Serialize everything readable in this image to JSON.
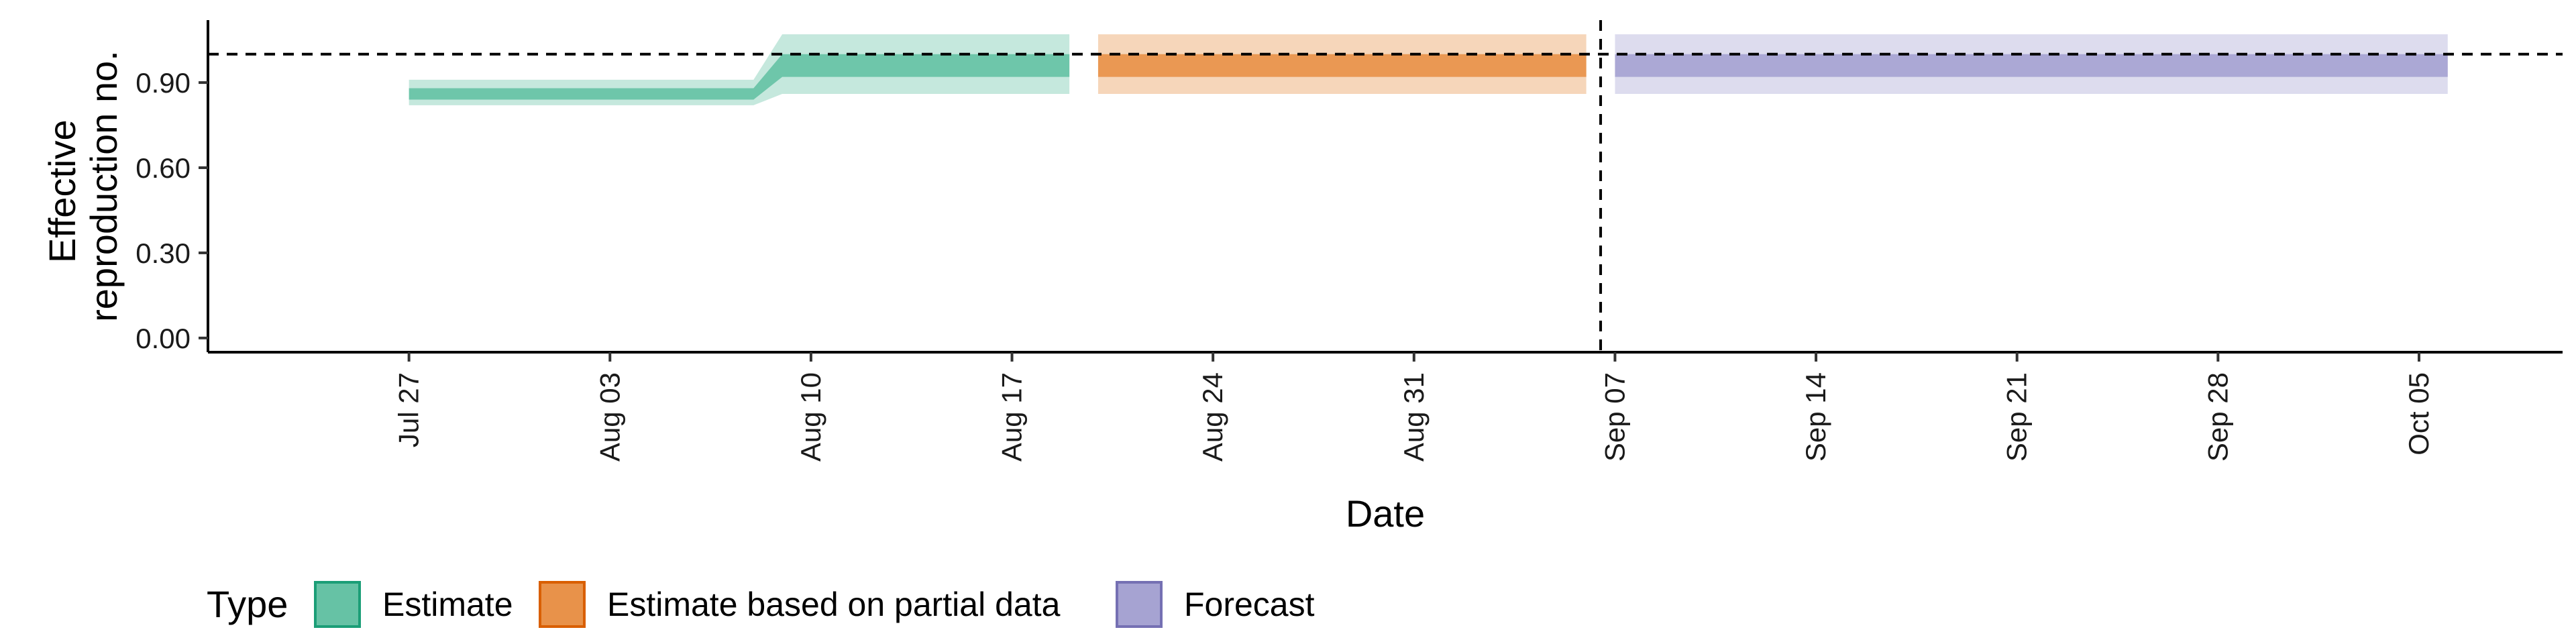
{
  "chart_data": {
    "type": "area",
    "xlabel": "Date",
    "ylabel_lines": [
      "Effective",
      "reproduction no."
    ],
    "x_ticks": [
      {
        "date": "2021-07-27",
        "label": "Jul 27"
      },
      {
        "date": "2021-08-03",
        "label": "Aug 03"
      },
      {
        "date": "2021-08-10",
        "label": "Aug 10"
      },
      {
        "date": "2021-08-17",
        "label": "Aug 17"
      },
      {
        "date": "2021-08-24",
        "label": "Aug 24"
      },
      {
        "date": "2021-08-31",
        "label": "Aug 31"
      },
      {
        "date": "2021-09-07",
        "label": "Sep 07"
      },
      {
        "date": "2021-09-14",
        "label": "Sep 14"
      },
      {
        "date": "2021-09-21",
        "label": "Sep 21"
      },
      {
        "date": "2021-09-28",
        "label": "Sep 28"
      },
      {
        "date": "2021-10-05",
        "label": "Oct 05"
      }
    ],
    "xlim": [
      "2021-07-20",
      "2021-10-10"
    ],
    "y_ticks": [
      {
        "value": 0.0,
        "label": "0.00"
      },
      {
        "value": 0.3,
        "label": "0.30"
      },
      {
        "value": 0.6,
        "label": "0.60"
      },
      {
        "value": 0.9,
        "label": "0.90"
      }
    ],
    "ylim": [
      -0.05,
      1.12
    ],
    "reference_hline": 1.0,
    "reference_vline": "2021-09-06",
    "series": [
      {
        "name": "Estimate",
        "color": "#1b9e77",
        "fill": "#66c2a5",
        "x": [
          "2021-07-27",
          "2021-08-08",
          "2021-08-09",
          "2021-08-19"
        ],
        "lower_90": [
          0.82,
          0.82,
          0.86,
          0.86
        ],
        "upper_90": [
          0.91,
          0.91,
          1.07,
          1.07
        ],
        "lower_50": [
          0.84,
          0.84,
          0.92,
          0.92
        ],
        "upper_50": [
          0.88,
          0.88,
          1.0,
          1.0
        ]
      },
      {
        "name": "Estimate based on partial data",
        "color": "#d95f02",
        "fill": "#e8924a",
        "x": [
          "2021-08-20",
          "2021-09-06"
        ],
        "lower_90": [
          0.86,
          0.86
        ],
        "upper_90": [
          1.07,
          1.07
        ],
        "lower_50": [
          0.92,
          0.92
        ],
        "upper_50": [
          1.0,
          1.0
        ]
      },
      {
        "name": "Forecast",
        "color": "#7570b3",
        "fill": "#a6a3d2",
        "x": [
          "2021-09-07",
          "2021-10-06"
        ],
        "lower_90": [
          0.86,
          0.86
        ],
        "upper_90": [
          1.07,
          1.07
        ],
        "lower_50": [
          0.92,
          0.92
        ],
        "upper_50": [
          1.0,
          1.0
        ]
      }
    ],
    "legend": {
      "title": "Type",
      "position": "bottom-left",
      "items": [
        "Estimate",
        "Estimate based on partial data",
        "Forecast"
      ]
    }
  }
}
